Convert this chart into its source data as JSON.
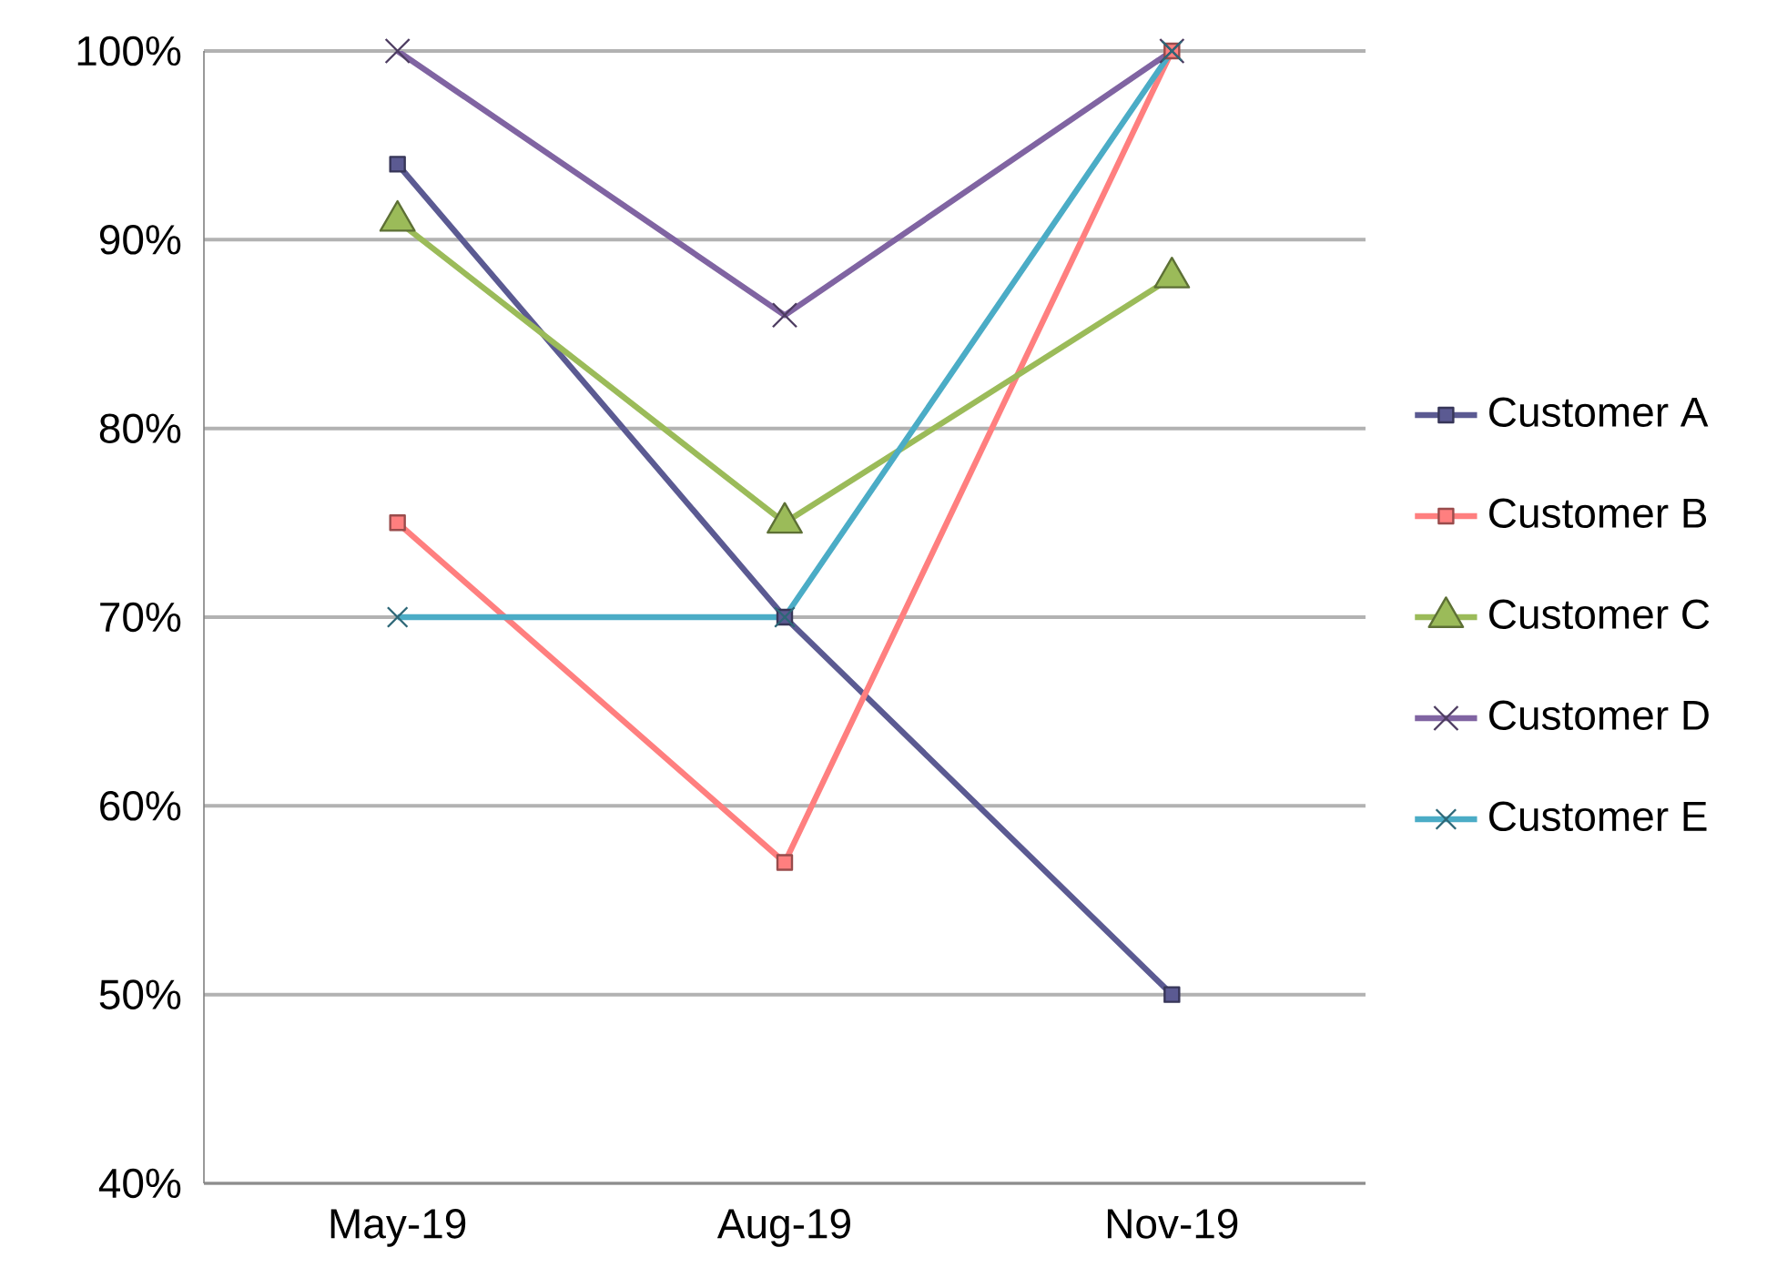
{
  "chart_data": {
    "type": "line",
    "categories": [
      "May-19",
      "Aug-19",
      "Nov-19"
    ],
    "series": [
      {
        "name": "Customer A",
        "color": "#5b5a92",
        "marker": "square",
        "values": [
          94,
          70,
          50
        ]
      },
      {
        "name": "Customer B",
        "color": "#ff7f7f",
        "marker": "square",
        "values": [
          75,
          57,
          100
        ]
      },
      {
        "name": "Customer C",
        "color": "#9bbb59",
        "marker": "triangle",
        "values": [
          91,
          75,
          88
        ]
      },
      {
        "name": "Customer D",
        "color": "#8064a2",
        "marker": "cross",
        "values": [
          100,
          86,
          100
        ]
      },
      {
        "name": "Customer E",
        "color": "#4bacc6",
        "marker": "cross",
        "values": [
          70,
          70,
          100
        ]
      }
    ],
    "ylim": [
      40,
      100
    ],
    "yticks": [
      {
        "value": 40,
        "label": "40%"
      },
      {
        "value": 50,
        "label": "50%"
      },
      {
        "value": 60,
        "label": "60%"
      },
      {
        "value": 70,
        "label": "70%"
      },
      {
        "value": 80,
        "label": "80%"
      },
      {
        "value": 90,
        "label": "90%"
      },
      {
        "value": 100,
        "label": "100%"
      }
    ],
    "grid": "y",
    "legend": "right",
    "line_style": "solid"
  }
}
